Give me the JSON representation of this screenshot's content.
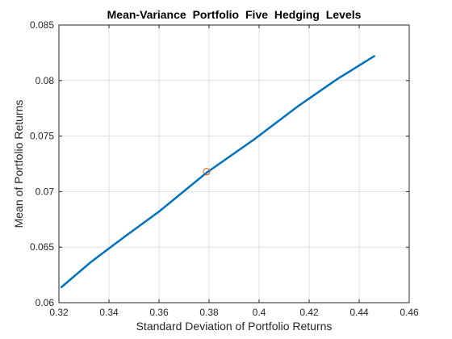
{
  "chart_data": {
    "type": "line",
    "title": "Mean-Variance  Portfolio  Five  Hedging  Levels",
    "xlabel": "Standard Deviation of Portfolio Returns",
    "ylabel": "Mean of Portfolio Returns",
    "xlim": [
      0.32,
      0.46
    ],
    "ylim": [
      0.06,
      0.085
    ],
    "xticks": [
      0.32,
      0.34,
      0.36,
      0.38,
      0.4,
      0.42,
      0.44,
      0.46
    ],
    "xtick_labels": [
      "0.32",
      "0.34",
      "0.36",
      "0.38",
      "0.4",
      "0.42",
      "0.44",
      "0.46"
    ],
    "yticks": [
      0.06,
      0.065,
      0.07,
      0.075,
      0.08,
      0.085
    ],
    "ytick_labels": [
      "0.06",
      "0.065",
      "0.07",
      "0.075",
      "0.08",
      "0.085"
    ],
    "grid": true,
    "series": [
      {
        "color": "#0072BD",
        "x": [
          0.321,
          0.333,
          0.346,
          0.36,
          0.379,
          0.398,
          0.415,
          0.431,
          0.446
        ],
        "y": [
          0.0614,
          0.0637,
          0.0659,
          0.0682,
          0.0717,
          0.0747,
          0.0776,
          0.0801,
          0.0822
        ]
      }
    ],
    "marker": {
      "x": 0.379,
      "y": 0.0718,
      "color": "#D95319",
      "shape": "circle"
    }
  }
}
